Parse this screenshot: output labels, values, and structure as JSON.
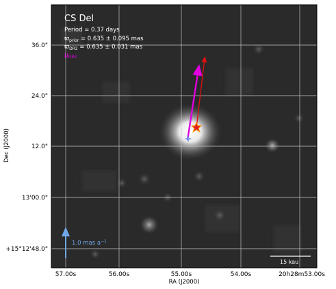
{
  "image": {
    "object_name": "CS Del",
    "period_line": "Period =   0.37 days",
    "parallax_prior_symbol": "ϖ",
    "parallax_prior_sub": "prior",
    "parallax_prior_value": " = 0.635 ± 0.095 mas",
    "parallax_dr2_symbol": "ϖ",
    "parallax_dr2_sub": "DR2",
    "parallax_dr2_value": " = 0.635 ± 0.031 mas",
    "pm_label_symbol": "μ",
    "pm_label_sub": "DR2",
    "pm_scale_label": "1.0 mas a",
    "pm_scale_exp": "−1",
    "scale_bar_label": "15 kau",
    "x_axis_title": "RA (J2000)",
    "y_axis_title": "Dec (J2000)",
    "x_ticks": [
      "57.00s",
      "56.00s",
      "55.00s",
      "54.00s",
      "20h28m53.00s"
    ],
    "y_ticks": [
      "36.0\"",
      "24.0\"",
      "12.0\"",
      "13'00.0\"",
      "+15°12'48.0\""
    ],
    "colors": {
      "pm_dr2_arrow": "#e000e0",
      "pm_alt_arrow": "#e01010",
      "scale_arrow": "#6fa8e8",
      "grid": "#c8c8c8",
      "star_marker": "#ff8800"
    }
  }
}
